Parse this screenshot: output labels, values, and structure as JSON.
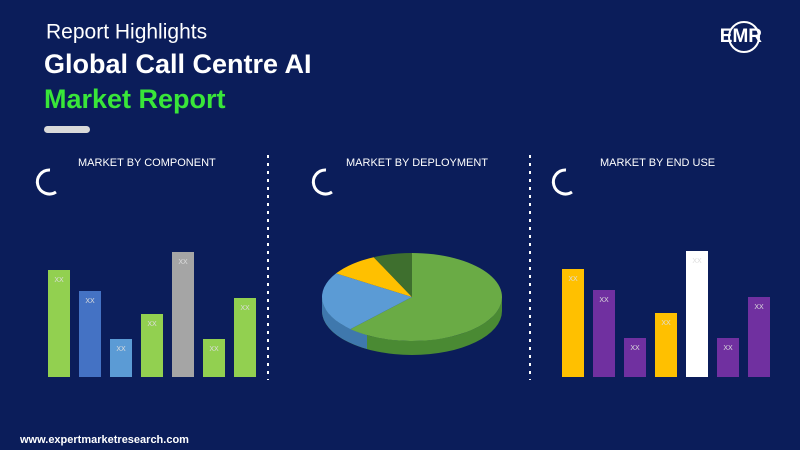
{
  "header": {
    "subtitle": "Report Highlights",
    "title": "Global Call Centre AI",
    "title2": "Market Report",
    "logo": "EMR"
  },
  "footer": "www.expertmarketresearch.com",
  "chart_data": [
    {
      "type": "bar",
      "title": "MARKET BY COMPONENT",
      "values": [
        107,
        86,
        38,
        63,
        125,
        38,
        79
      ],
      "value_labels": [
        "XX",
        "XX",
        "XX",
        "XX",
        "XX",
        "XX",
        "XX"
      ],
      "colors": [
        "#92d050",
        "#4472c4",
        "#5b9bd5",
        "#92d050",
        "#a5a5a5",
        "#92d050",
        "#92d050"
      ],
      "ylim": [
        0,
        130
      ]
    },
    {
      "type": "pie",
      "title": "MARKET BY DEPLOYMENT",
      "values": [
        62,
        22,
        9,
        7
      ],
      "colors": [
        "#6aab45",
        "#5b9bd5",
        "#ffc000",
        "#3e6f2e"
      ]
    },
    {
      "type": "bar",
      "title": "MARKET BY END USE",
      "values": [
        108,
        87,
        39,
        64,
        126,
        39,
        80
      ],
      "value_labels": [
        "XX",
        "XX",
        "XX",
        "XX",
        "XX",
        "XX",
        "XX"
      ],
      "colors": [
        "#ffc000",
        "#7030a0",
        "#7030a0",
        "#ffc000",
        "#ffffff",
        "#7030a0",
        "#7030a0"
      ],
      "ylim": [
        0,
        130
      ]
    }
  ]
}
